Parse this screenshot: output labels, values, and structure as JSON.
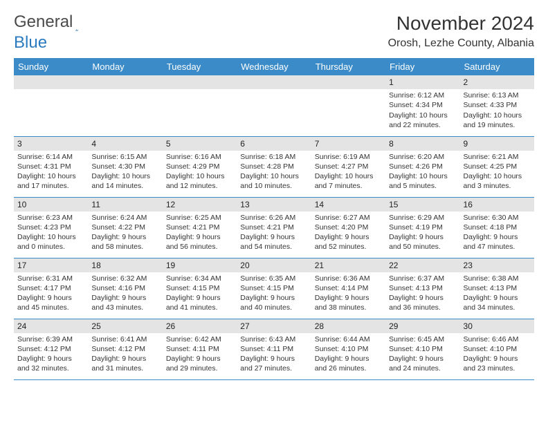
{
  "logo": {
    "text1": "General",
    "text2": "Blue"
  },
  "title": "November 2024",
  "location": "Orosh, Lezhe County, Albania",
  "colors": {
    "header_bg": "#3b8bc9",
    "header_text": "#ffffff",
    "daynum_bg": "#e4e4e4",
    "cell_border": "#3b8bc9",
    "body_text": "#333333",
    "logo_accent": "#2b7bbf"
  },
  "weekdays": [
    "Sunday",
    "Monday",
    "Tuesday",
    "Wednesday",
    "Thursday",
    "Friday",
    "Saturday"
  ],
  "weeks": [
    [
      null,
      null,
      null,
      null,
      null,
      {
        "d": "1",
        "sr": "6:12 AM",
        "ss": "4:34 PM",
        "dl": "10 hours and 22 minutes."
      },
      {
        "d": "2",
        "sr": "6:13 AM",
        "ss": "4:33 PM",
        "dl": "10 hours and 19 minutes."
      }
    ],
    [
      {
        "d": "3",
        "sr": "6:14 AM",
        "ss": "4:31 PM",
        "dl": "10 hours and 17 minutes."
      },
      {
        "d": "4",
        "sr": "6:15 AM",
        "ss": "4:30 PM",
        "dl": "10 hours and 14 minutes."
      },
      {
        "d": "5",
        "sr": "6:16 AM",
        "ss": "4:29 PM",
        "dl": "10 hours and 12 minutes."
      },
      {
        "d": "6",
        "sr": "6:18 AM",
        "ss": "4:28 PM",
        "dl": "10 hours and 10 minutes."
      },
      {
        "d": "7",
        "sr": "6:19 AM",
        "ss": "4:27 PM",
        "dl": "10 hours and 7 minutes."
      },
      {
        "d": "8",
        "sr": "6:20 AM",
        "ss": "4:26 PM",
        "dl": "10 hours and 5 minutes."
      },
      {
        "d": "9",
        "sr": "6:21 AM",
        "ss": "4:25 PM",
        "dl": "10 hours and 3 minutes."
      }
    ],
    [
      {
        "d": "10",
        "sr": "6:23 AM",
        "ss": "4:23 PM",
        "dl": "10 hours and 0 minutes."
      },
      {
        "d": "11",
        "sr": "6:24 AM",
        "ss": "4:22 PM",
        "dl": "9 hours and 58 minutes."
      },
      {
        "d": "12",
        "sr": "6:25 AM",
        "ss": "4:21 PM",
        "dl": "9 hours and 56 minutes."
      },
      {
        "d": "13",
        "sr": "6:26 AM",
        "ss": "4:21 PM",
        "dl": "9 hours and 54 minutes."
      },
      {
        "d": "14",
        "sr": "6:27 AM",
        "ss": "4:20 PM",
        "dl": "9 hours and 52 minutes."
      },
      {
        "d": "15",
        "sr": "6:29 AM",
        "ss": "4:19 PM",
        "dl": "9 hours and 50 minutes."
      },
      {
        "d": "16",
        "sr": "6:30 AM",
        "ss": "4:18 PM",
        "dl": "9 hours and 47 minutes."
      }
    ],
    [
      {
        "d": "17",
        "sr": "6:31 AM",
        "ss": "4:17 PM",
        "dl": "9 hours and 45 minutes."
      },
      {
        "d": "18",
        "sr": "6:32 AM",
        "ss": "4:16 PM",
        "dl": "9 hours and 43 minutes."
      },
      {
        "d": "19",
        "sr": "6:34 AM",
        "ss": "4:15 PM",
        "dl": "9 hours and 41 minutes."
      },
      {
        "d": "20",
        "sr": "6:35 AM",
        "ss": "4:15 PM",
        "dl": "9 hours and 40 minutes."
      },
      {
        "d": "21",
        "sr": "6:36 AM",
        "ss": "4:14 PM",
        "dl": "9 hours and 38 minutes."
      },
      {
        "d": "22",
        "sr": "6:37 AM",
        "ss": "4:13 PM",
        "dl": "9 hours and 36 minutes."
      },
      {
        "d": "23",
        "sr": "6:38 AM",
        "ss": "4:13 PM",
        "dl": "9 hours and 34 minutes."
      }
    ],
    [
      {
        "d": "24",
        "sr": "6:39 AM",
        "ss": "4:12 PM",
        "dl": "9 hours and 32 minutes."
      },
      {
        "d": "25",
        "sr": "6:41 AM",
        "ss": "4:12 PM",
        "dl": "9 hours and 31 minutes."
      },
      {
        "d": "26",
        "sr": "6:42 AM",
        "ss": "4:11 PM",
        "dl": "9 hours and 29 minutes."
      },
      {
        "d": "27",
        "sr": "6:43 AM",
        "ss": "4:11 PM",
        "dl": "9 hours and 27 minutes."
      },
      {
        "d": "28",
        "sr": "6:44 AM",
        "ss": "4:10 PM",
        "dl": "9 hours and 26 minutes."
      },
      {
        "d": "29",
        "sr": "6:45 AM",
        "ss": "4:10 PM",
        "dl": "9 hours and 24 minutes."
      },
      {
        "d": "30",
        "sr": "6:46 AM",
        "ss": "4:10 PM",
        "dl": "9 hours and 23 minutes."
      }
    ]
  ],
  "labels": {
    "sunrise": "Sunrise:",
    "sunset": "Sunset:",
    "daylight": "Daylight:"
  }
}
